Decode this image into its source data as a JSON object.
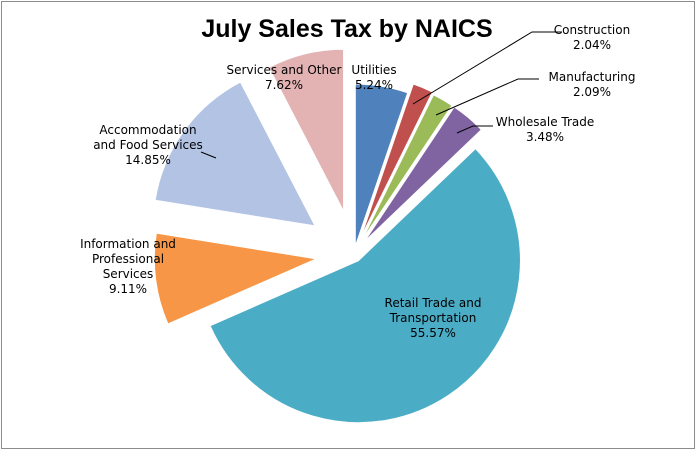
{
  "chart_data": {
    "type": "pie",
    "title": "July Sales Tax by NAICS",
    "slices": [
      {
        "label": [
          "Utilities"
        ],
        "value": "5.24%",
        "percent": 5.24,
        "color": "#4f81bd"
      },
      {
        "label": [
          "Construction"
        ],
        "value": "2.04%",
        "percent": 2.04,
        "color": "#c0504d"
      },
      {
        "label": [
          "Manufacturing"
        ],
        "value": "2.09%",
        "percent": 2.09,
        "color": "#9bbb59"
      },
      {
        "label": [
          "Wholesale Trade"
        ],
        "value": "3.48%",
        "percent": 3.48,
        "color": "#8064a2"
      },
      {
        "label": [
          "Retail Trade and",
          "Transportation"
        ],
        "value": "55.57%",
        "percent": 55.57,
        "color": "#4bacc6"
      },
      {
        "label": [
          "Information and",
          "Professional",
          "Services"
        ],
        "value": "9.11%",
        "percent": 9.11,
        "color": "#f79646"
      },
      {
        "label": [
          "Accommodation",
          "and Food Services"
        ],
        "value": "14.85%",
        "percent": 14.85,
        "color": "#b3c3e3"
      },
      {
        "label": [
          "Services and Other"
        ],
        "value": "7.62%",
        "percent": 7.62,
        "color": "#e3b3b3"
      }
    ],
    "exploded": true,
    "leader_line_color": "#000000"
  }
}
